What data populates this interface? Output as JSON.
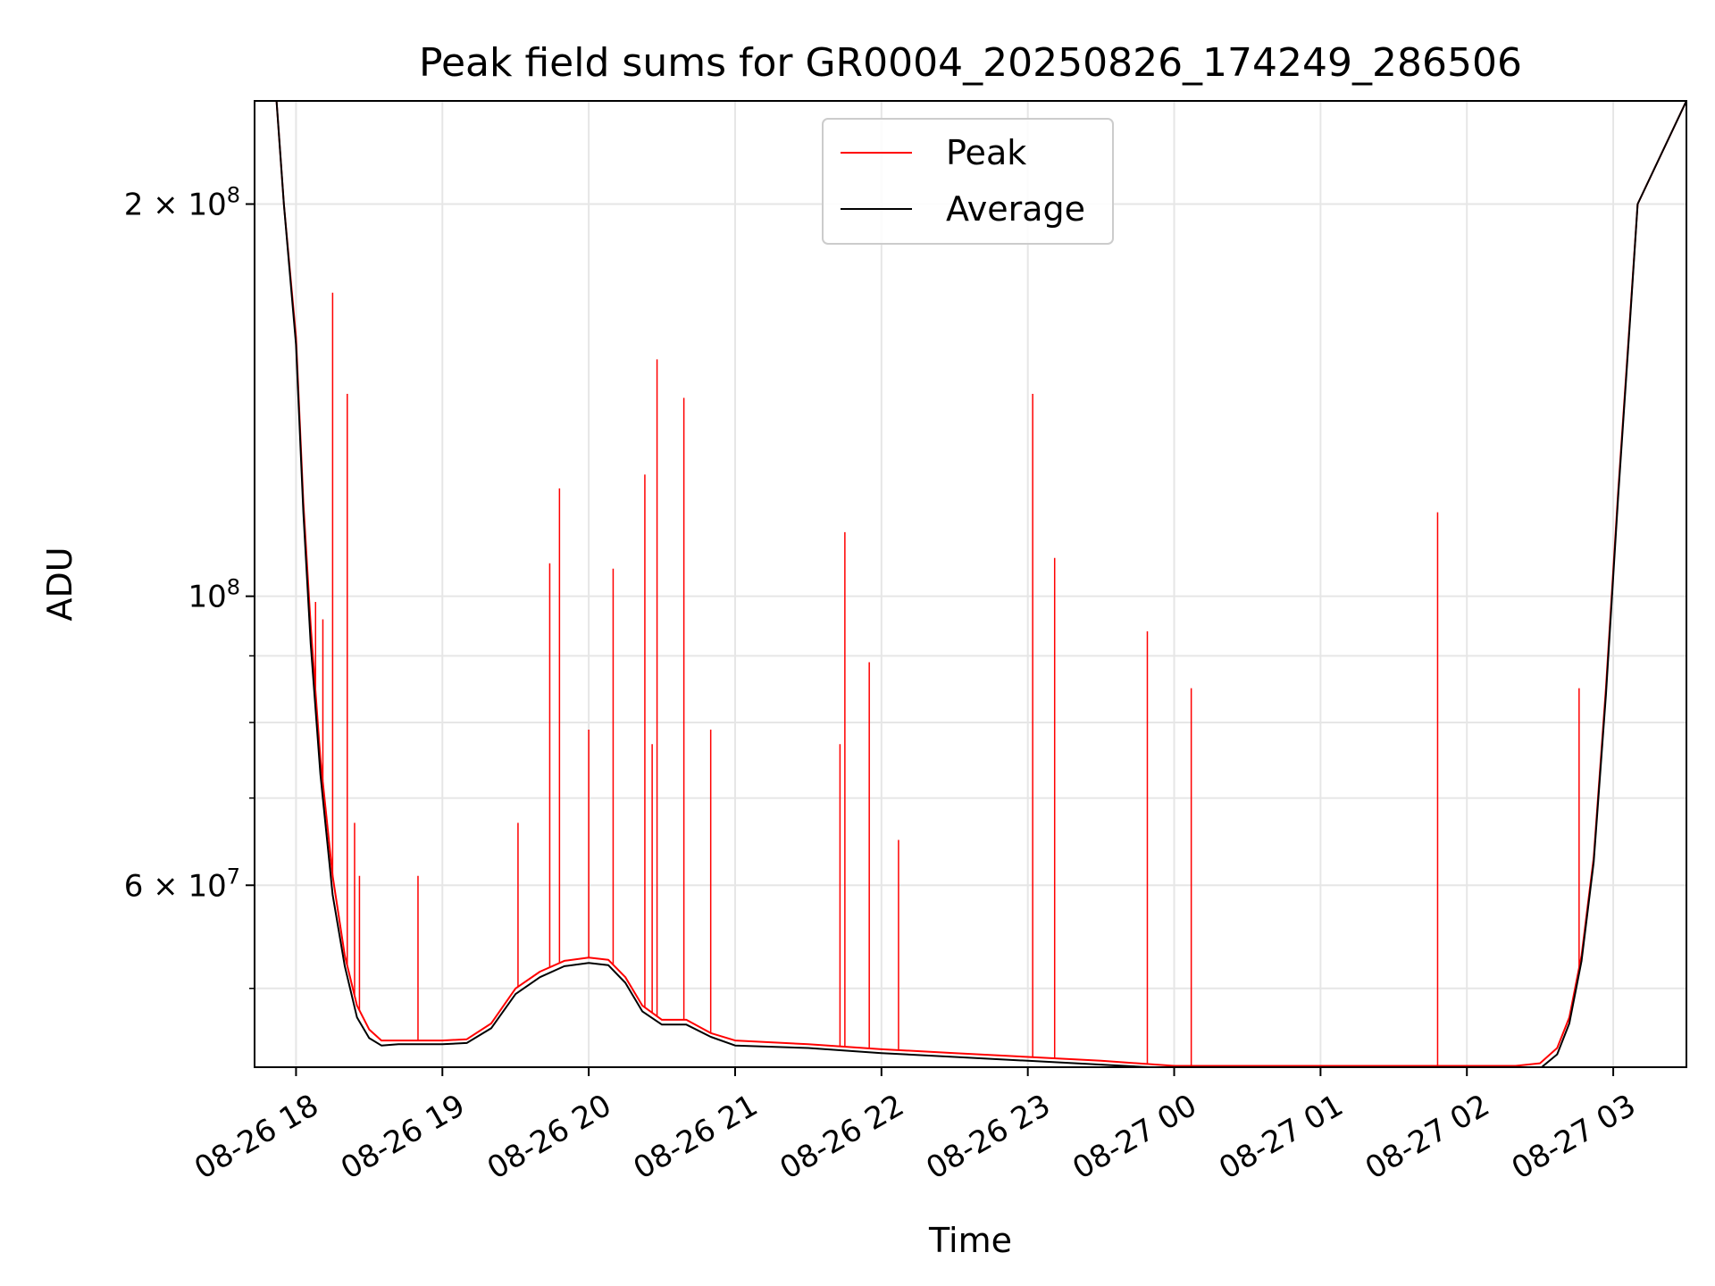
{
  "chart_data": {
    "type": "line",
    "title": "Peak field sums for GR0004_20250826_174249_286506",
    "xlabel": "Time",
    "ylabel": "ADU",
    "yscale": "log",
    "ylim": [
      43500000,
      240000000
    ],
    "xlim": [
      "2025-08-26 17:43",
      "2025-08-27 03:30"
    ],
    "x_ticks": [
      "08-26 18",
      "08-26 19",
      "08-26 20",
      "08-26 21",
      "08-26 22",
      "08-26 23",
      "08-27 00",
      "08-27 01",
      "08-27 02",
      "08-27 03"
    ],
    "x_tick_values": [
      "2025-08-26 18:00",
      "2025-08-26 19:00",
      "2025-08-26 20:00",
      "2025-08-26 21:00",
      "2025-08-26 22:00",
      "2025-08-26 23:00",
      "2025-08-27 00:00",
      "2025-08-27 01:00",
      "2025-08-27 02:00",
      "2025-08-27 03:00"
    ],
    "y_ticks_major": [
      {
        "value": 100000000,
        "mantissa": "",
        "exp": "8"
      },
      {
        "value": 200000000,
        "mantissa": "2 × ",
        "exp": "8"
      },
      {
        "value": 60000000,
        "mantissa": "6 × ",
        "exp": "7"
      }
    ],
    "y_ticks_minor": [
      50000000,
      70000000,
      80000000,
      90000000
    ],
    "grid": true,
    "legend": "upper center",
    "series": [
      {
        "name": "Peak",
        "color": "#ff0000",
        "x": [
          "2025-08-26 17:43",
          "2025-08-26 17:52",
          "2025-08-26 17:55",
          "2025-08-26 18:00",
          "2025-08-26 18:03",
          "2025-08-26 18:06",
          "2025-08-26 18:10",
          "2025-08-26 18:15",
          "2025-08-26 18:20",
          "2025-08-26 18:25",
          "2025-08-26 18:30",
          "2025-08-26 18:35",
          "2025-08-26 18:42",
          "2025-08-26 18:50",
          "2025-08-26 19:00",
          "2025-08-26 19:10",
          "2025-08-26 19:20",
          "2025-08-26 19:30",
          "2025-08-26 19:40",
          "2025-08-26 19:50",
          "2025-08-26 20:00",
          "2025-08-26 20:08",
          "2025-08-26 20:15",
          "2025-08-26 20:22",
          "2025-08-26 20:30",
          "2025-08-26 20:40",
          "2025-08-26 20:50",
          "2025-08-26 21:00",
          "2025-08-26 21:30",
          "2025-08-26 22:00",
          "2025-08-26 22:30",
          "2025-08-26 23:00",
          "2025-08-26 23:30",
          "2025-08-27 00:00",
          "2025-08-27 00:20",
          "2025-08-27 01:00",
          "2025-08-27 02:00",
          "2025-08-27 02:20",
          "2025-08-27 02:30",
          "2025-08-27 02:37",
          "2025-08-27 02:42",
          "2025-08-27 02:47",
          "2025-08-27 02:52",
          "2025-08-27 02:57",
          "2025-08-27 03:02",
          "2025-08-27 03:07",
          "2025-08-27 03:10",
          "2025-08-27 03:30"
        ],
        "y": [
          240000000,
          240000000,
          200000000,
          158000000,
          118000000,
          95000000,
          75000000,
          61000000,
          53000000,
          48500000,
          46500000,
          45600000,
          45600000,
          45600000,
          45600000,
          45700000,
          47000000,
          50000000,
          51500000,
          52500000,
          52800000,
          52600000,
          51000000,
          48500000,
          47300000,
          47300000,
          46200000,
          45600000,
          45300000,
          44900000,
          44600000,
          44300000,
          44000000,
          43600000,
          43600000,
          43600000,
          43600000,
          43600000,
          43800000,
          45000000,
          47500000,
          53000000,
          63000000,
          85000000,
          120000000,
          165000000,
          200000000,
          240000000
        ],
        "spikes": [
          {
            "x": "2025-08-26 18:15",
            "y": 171000000
          },
          {
            "x": "2025-08-26 18:21",
            "y": 143000000
          },
          {
            "x": "2025-08-26 18:08",
            "y": 99000000
          },
          {
            "x": "2025-08-26 18:11",
            "y": 96000000
          },
          {
            "x": "2025-08-26 18:24",
            "y": 67000000
          },
          {
            "x": "2025-08-26 18:26",
            "y": 61000000
          },
          {
            "x": "2025-08-26 18:50",
            "y": 61000000
          },
          {
            "x": "2025-08-26 19:31",
            "y": 67000000
          },
          {
            "x": "2025-08-26 19:44",
            "y": 106000000
          },
          {
            "x": "2025-08-26 19:48",
            "y": 121000000
          },
          {
            "x": "2025-08-26 20:00",
            "y": 79000000
          },
          {
            "x": "2025-08-26 20:10",
            "y": 105000000
          },
          {
            "x": "2025-08-26 20:23",
            "y": 124000000
          },
          {
            "x": "2025-08-26 20:26",
            "y": 77000000
          },
          {
            "x": "2025-08-26 20:28",
            "y": 152000000
          },
          {
            "x": "2025-08-26 20:39",
            "y": 142000000
          },
          {
            "x": "2025-08-26 20:50",
            "y": 79000000
          },
          {
            "x": "2025-08-26 21:43",
            "y": 77000000
          },
          {
            "x": "2025-08-26 21:45",
            "y": 112000000
          },
          {
            "x": "2025-08-26 21:55",
            "y": 89000000
          },
          {
            "x": "2025-08-26 22:07",
            "y": 65000000
          },
          {
            "x": "2025-08-26 23:02",
            "y": 143000000
          },
          {
            "x": "2025-08-26 23:11",
            "y": 107000000
          },
          {
            "x": "2025-08-26 23:49",
            "y": 94000000
          },
          {
            "x": "2025-08-27 00:07",
            "y": 85000000
          },
          {
            "x": "2025-08-27 01:48",
            "y": 116000000
          },
          {
            "x": "2025-08-27 02:46",
            "y": 85000000
          }
        ]
      },
      {
        "name": "Average",
        "color": "#000000",
        "x": [
          "2025-08-26 17:43",
          "2025-08-26 17:52",
          "2025-08-26 17:55",
          "2025-08-26 18:00",
          "2025-08-26 18:03",
          "2025-08-26 18:06",
          "2025-08-26 18:10",
          "2025-08-26 18:15",
          "2025-08-26 18:20",
          "2025-08-26 18:25",
          "2025-08-26 18:30",
          "2025-08-26 18:35",
          "2025-08-26 18:42",
          "2025-08-26 18:50",
          "2025-08-26 19:00",
          "2025-08-26 19:10",
          "2025-08-26 19:20",
          "2025-08-26 19:30",
          "2025-08-26 19:40",
          "2025-08-26 19:50",
          "2025-08-26 20:00",
          "2025-08-26 20:08",
          "2025-08-26 20:15",
          "2025-08-26 20:22",
          "2025-08-26 20:30",
          "2025-08-26 20:40",
          "2025-08-26 20:50",
          "2025-08-26 21:00",
          "2025-08-26 21:30",
          "2025-08-26 22:00",
          "2025-08-26 22:30",
          "2025-08-26 23:00",
          "2025-08-26 23:30",
          "2025-08-27 00:00",
          "2025-08-27 00:20",
          "2025-08-27 01:00",
          "2025-08-27 02:00",
          "2025-08-27 02:20",
          "2025-08-27 02:30",
          "2025-08-27 02:37",
          "2025-08-27 02:42",
          "2025-08-27 02:47",
          "2025-08-27 02:52",
          "2025-08-27 02:57",
          "2025-08-27 03:02",
          "2025-08-27 03:07",
          "2025-08-27 03:10",
          "2025-08-27 03:30"
        ],
        "y": [
          240000000,
          240000000,
          200000000,
          156000000,
          116000000,
          92000000,
          73000000,
          59000000,
          52000000,
          47500000,
          45800000,
          45200000,
          45300000,
          45300000,
          45300000,
          45400000,
          46600000,
          49500000,
          51000000,
          52000000,
          52300000,
          52100000,
          50500000,
          48000000,
          46900000,
          46900000,
          45900000,
          45200000,
          45000000,
          44600000,
          44300000,
          44000000,
          43700000,
          43400000,
          43300000,
          43300000,
          43300000,
          43300000,
          43400000,
          44500000,
          47000000,
          52500000,
          62500000,
          84000000,
          119000000,
          164000000,
          200000000,
          240000000
        ]
      }
    ]
  }
}
